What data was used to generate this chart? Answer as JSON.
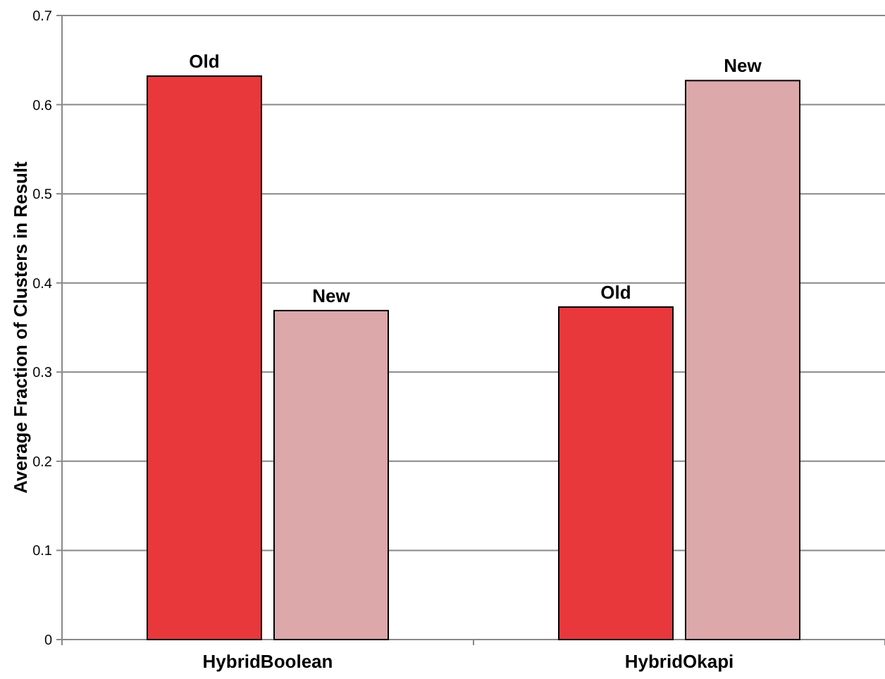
{
  "chart_data": {
    "type": "bar",
    "ylabel": "Average Fraction of Clusters in Result",
    "categories": [
      "HybridBoolean",
      "HybridOkapi"
    ],
    "series": [
      {
        "name": "Old",
        "color": "#e8383c",
        "values": [
          0.632,
          0.373
        ]
      },
      {
        "name": "New",
        "color": "#dca8aa",
        "values": [
          0.369,
          0.627
        ]
      }
    ],
    "ylim": [
      0,
      0.7
    ],
    "yticks": [
      0,
      0.1,
      0.2,
      0.3,
      0.4,
      0.5,
      0.6,
      0.7
    ],
    "grid": "y"
  }
}
